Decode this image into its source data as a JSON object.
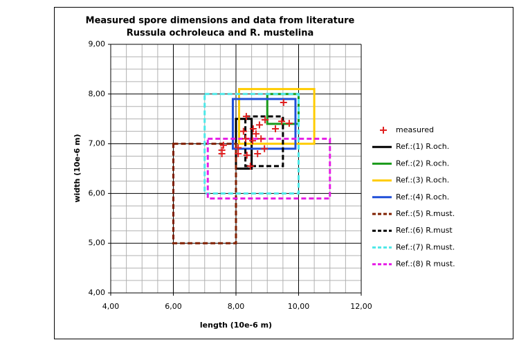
{
  "chart_data": {
    "type": "scatter",
    "title": [
      "Measured spore dimensions and data from literature",
      "Russula ochroleuca and R. mustelina"
    ],
    "x_label": "length (10e-6 m)",
    "y_label": "width (10e-6 m)",
    "xlim": [
      4,
      12
    ],
    "ylim": [
      4,
      9
    ],
    "xticks": [
      {
        "value": 4,
        "label": "4,00"
      },
      {
        "value": 6,
        "label": "6,00"
      },
      {
        "value": 8,
        "label": "8,00"
      },
      {
        "value": 10,
        "label": "10,00"
      },
      {
        "value": 12,
        "label": "12,00"
      }
    ],
    "yticks": [
      {
        "value": 4,
        "label": "4,00"
      },
      {
        "value": 5,
        "label": "5,00"
      },
      {
        "value": 6,
        "label": "6,00"
      },
      {
        "value": 7,
        "label": "7,00"
      },
      {
        "value": 8,
        "label": "8,00"
      },
      {
        "value": 9,
        "label": "9,00"
      }
    ],
    "grid": true,
    "legend": "right",
    "series": [
      {
        "name": "measured",
        "kind": "points",
        "color": "#e02020",
        "x": [
          9.52,
          8.33,
          8.93,
          8.75,
          8.55,
          8.24,
          8.64,
          9.26,
          9.46,
          9.7,
          8.31,
          8.8,
          7.6,
          7.55,
          7.55,
          8.07,
          8.07,
          8.35,
          8.46,
          8.69,
          8.91,
          8.53
        ],
        "values": [
          7.83,
          7.55,
          7.48,
          7.38,
          7.3,
          7.25,
          7.2,
          7.3,
          7.45,
          7.41,
          7.1,
          7.1,
          6.97,
          6.87,
          6.8,
          6.92,
          6.8,
          6.77,
          6.55,
          6.8,
          6.9,
          7.06
        ]
      },
      {
        "name": "Ref.:(1) R.och.",
        "kind": "range",
        "color": "#000000",
        "dashed": false,
        "x": [
          8,
          8.5
        ],
        "values": [
          6.5,
          7.5
        ]
      },
      {
        "name": "Ref.:(2) R.och.",
        "kind": "range",
        "color": "#1a9a1a",
        "dashed": false,
        "x": [
          9,
          10
        ],
        "values": [
          7.4,
          8.0
        ]
      },
      {
        "name": "Ref.:(3) R.och.",
        "kind": "range",
        "color": "#ffcc00",
        "dashed": false,
        "x": [
          8.1,
          10.5
        ],
        "values": [
          7.0,
          8.1
        ]
      },
      {
        "name": "Ref.:(4) R.och.",
        "kind": "range",
        "color": "#1f4fd8",
        "dashed": false,
        "x": [
          7.9,
          9.9
        ],
        "values": [
          6.9,
          7.9
        ]
      },
      {
        "name": "Ref.:(5) R.must.",
        "kind": "range",
        "color": "#7f1f00",
        "dashed": true,
        "x": [
          6,
          8
        ],
        "values": [
          5.0,
          7.0
        ]
      },
      {
        "name": "Ref.:(6) R.must",
        "kind": "range",
        "color": "#000000",
        "dashed": true,
        "x": [
          8.3,
          9.5
        ],
        "values": [
          6.55,
          7.55
        ]
      },
      {
        "name": "Ref.:(7) R.must.",
        "kind": "range",
        "color": "#4de8e8",
        "dashed": true,
        "x": [
          7,
          10
        ],
        "values": [
          6.0,
          8.0
        ]
      },
      {
        "name": "Ref.:(8) R must.",
        "kind": "range",
        "color": "#e61ee6",
        "dashed": true,
        "x": [
          7.1,
          11
        ],
        "values": [
          5.9,
          7.1
        ]
      }
    ]
  }
}
